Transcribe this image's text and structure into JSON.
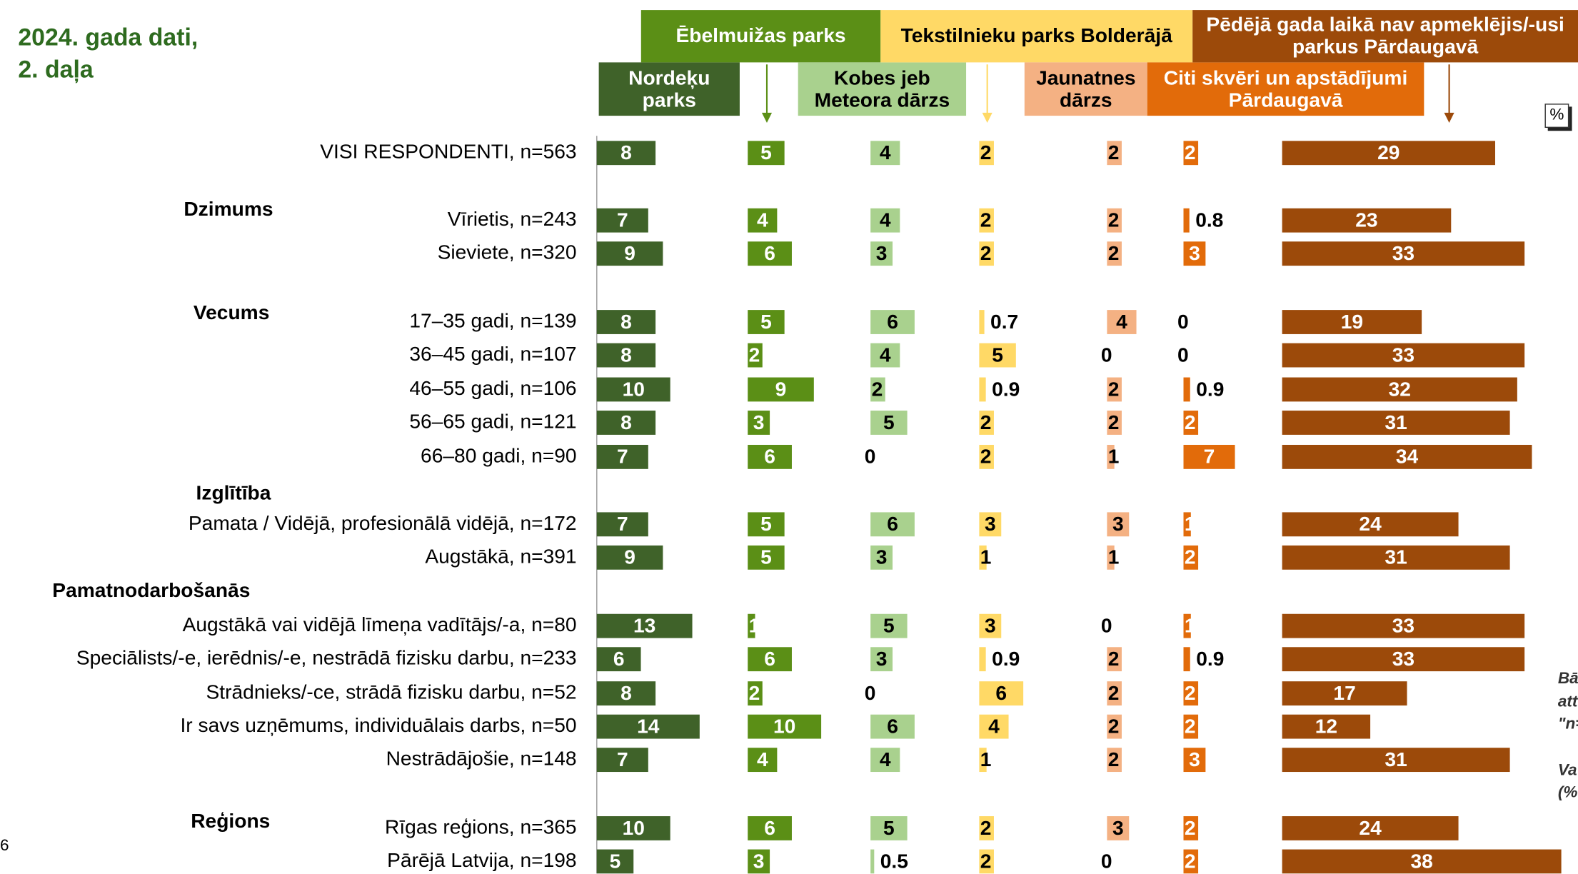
{
  "chart_data": {
    "type": "bar",
    "orientation": "horizontal",
    "title": [
      "2024. gada dati,",
      "2. daļa"
    ],
    "unit": "%",
    "page_number": "6",
    "side_note": [
      "Bā",
      "att",
      "\"n=",
      "Va",
      "(%"
    ],
    "categories": [
      "VISI RESPONDENTI, n=563",
      "Vīrietis, n=243",
      "Sieviete, n=320",
      "17–35 gadi, n=139",
      "36–45 gadi, n=107",
      "46–55 gadi, n=106",
      "56–65 gadi, n=121",
      "66–80 gadi, n=90",
      "Pamata / Vidējā, profesionālā vidējā, n=172",
      "Augstākā, n=391",
      "Augstākā vai vidējā līmeņa vadītājs/-a, n=80",
      "Speciālists/-e, ierēdnis/-e, nestrādā fizisku darbu, n=233",
      "Strādnieks/-ce, strādā fizisku darbu, n=52",
      "Ir savs uzņēmums, individuālais darbs, n=50",
      "Nestrādājošie, n=148",
      "Rīgas reģions, n=365",
      "Pārējā Latvija, n=198"
    ],
    "group_labels": [
      null,
      "Dzimums",
      null,
      "Vecums",
      null,
      null,
      null,
      null,
      "Izglītība",
      null,
      "Pamatnodarbošanās",
      null,
      null,
      null,
      null,
      "Reģions",
      null
    ],
    "series": [
      {
        "name": "Nordeķu parks",
        "color": "#3f6229",
        "text_color": "#ffffff",
        "values": [
          8,
          7,
          9,
          8,
          8,
          10,
          8,
          7,
          7,
          9,
          13,
          6,
          8,
          14,
          7,
          10,
          5
        ]
      },
      {
        "name": "Ēbelmuižas parks",
        "color": "#5b8f16",
        "text_color": "#ffffff",
        "values": [
          5,
          4,
          6,
          5,
          2,
          9,
          3,
          6,
          5,
          5,
          1,
          6,
          2,
          10,
          4,
          6,
          3
        ]
      },
      {
        "name": "Kobes jeb Meteora dārzs",
        "color": "#a9d18e",
        "text_color": "#000000",
        "values": [
          4,
          4,
          3,
          6,
          4,
          2,
          5,
          0,
          6,
          3,
          5,
          3,
          0,
          6,
          4,
          5,
          0.5
        ]
      },
      {
        "name": "Tekstilnieku parks Bolderājā",
        "color": "#ffd966",
        "text_color": "#000000",
        "values": [
          2,
          2,
          2,
          0.7,
          5,
          0.9,
          2,
          2,
          3,
          1,
          3,
          0.9,
          6,
          4,
          1,
          2,
          2
        ]
      },
      {
        "name": "Jaunatnes dārzs",
        "color": "#f4b183",
        "text_color": "#000000",
        "values": [
          2,
          2,
          2,
          4,
          0,
          2,
          2,
          1,
          3,
          1,
          0,
          2,
          2,
          2,
          2,
          3,
          0
        ]
      },
      {
        "name": "Citi skvēri un apstādījumi Pārdaugavā",
        "color": "#e26b0a",
        "text_color": "#ffffff",
        "values": [
          2,
          0.8,
          3,
          0,
          0,
          0.9,
          2,
          7,
          1,
          2,
          1,
          0.9,
          2,
          2,
          3,
          2,
          2
        ]
      },
      {
        "name": "Pēdējā gada laikā nav apmeklējis/-usi parkus Pārdaugavā",
        "color": "#9c4a0a",
        "text_color": "#ffffff",
        "values": [
          29,
          23,
          33,
          19,
          33,
          32,
          31,
          34,
          24,
          31,
          33,
          33,
          17,
          12,
          31,
          24,
          38
        ]
      }
    ]
  }
}
